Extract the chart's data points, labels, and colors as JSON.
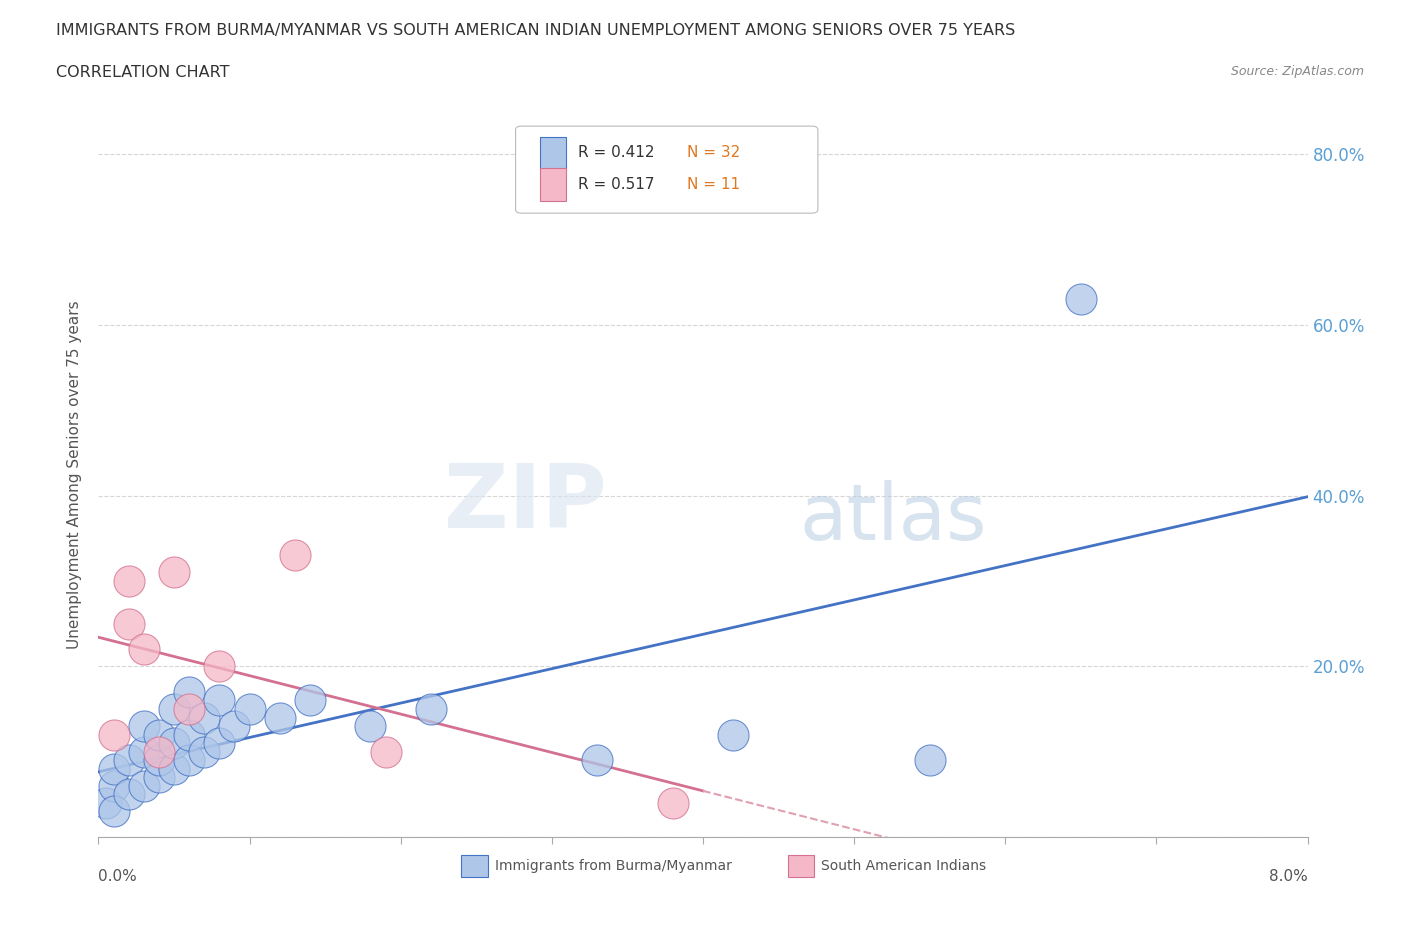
{
  "title": "IMMIGRANTS FROM BURMA/MYANMAR VS SOUTH AMERICAN INDIAN UNEMPLOYMENT AMONG SENIORS OVER 75 YEARS",
  "subtitle": "CORRELATION CHART",
  "source": "Source: ZipAtlas.com",
  "ylabel": "Unemployment Among Seniors over 75 years",
  "background_color": "#ffffff",
  "watermark_zip": "ZIP",
  "watermark_atlas": "atlas",
  "legend_r1": "R = 0.412",
  "legend_n1": "N = 32",
  "legend_r2": "R = 0.517",
  "legend_n2": "N = 11",
  "blue_color": "#aec6e8",
  "pink_color": "#f4b8c8",
  "blue_line_color": "#4472c4",
  "pink_line_color": "#d47090",
  "pink_dash_color": "#e0a0b0",
  "ytick_color": "#5a9fd4",
  "blue_x": [
    0.0005,
    0.001,
    0.001,
    0.001,
    0.002,
    0.002,
    0.003,
    0.003,
    0.003,
    0.004,
    0.004,
    0.004,
    0.005,
    0.005,
    0.005,
    0.006,
    0.006,
    0.006,
    0.007,
    0.007,
    0.008,
    0.008,
    0.009,
    0.01,
    0.012,
    0.014,
    0.018,
    0.022,
    0.033,
    0.042,
    0.055,
    0.065
  ],
  "blue_y": [
    0.04,
    0.06,
    0.03,
    0.08,
    0.05,
    0.09,
    0.06,
    0.1,
    0.13,
    0.07,
    0.09,
    0.12,
    0.08,
    0.11,
    0.15,
    0.09,
    0.12,
    0.17,
    0.1,
    0.14,
    0.11,
    0.16,
    0.13,
    0.15,
    0.14,
    0.16,
    0.13,
    0.15,
    0.09,
    0.12,
    0.09,
    0.63
  ],
  "pink_x": [
    0.001,
    0.002,
    0.002,
    0.003,
    0.004,
    0.005,
    0.006,
    0.008,
    0.013,
    0.019,
    0.038
  ],
  "pink_y": [
    0.12,
    0.25,
    0.3,
    0.22,
    0.1,
    0.31,
    0.15,
    0.2,
    0.33,
    0.1,
    0.04
  ],
  "xlim": [
    0.0,
    0.08
  ],
  "ylim": [
    0.0,
    0.85
  ],
  "yticks": [
    0.0,
    0.2,
    0.4,
    0.6,
    0.8
  ],
  "ytick_labels": [
    "",
    "20.0%",
    "40.0%",
    "60.0%",
    "80.0%"
  ]
}
